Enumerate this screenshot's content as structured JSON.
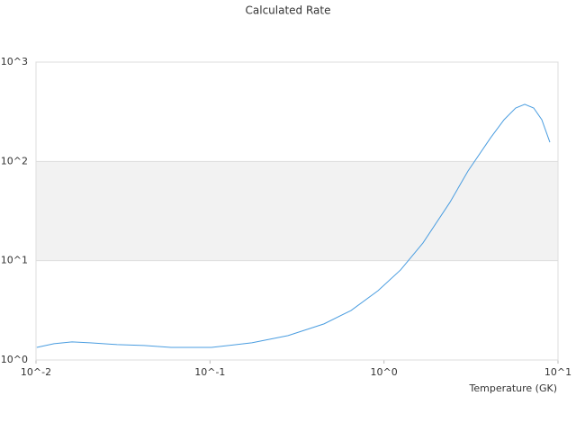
{
  "chart_data": {
    "type": "line",
    "title": "Calculated Rate",
    "x_label": "Temperature (GK)",
    "x": [
      0.0101,
      0.0127,
      0.0161,
      0.0204,
      0.0292,
      0.0418,
      0.0597,
      0.102,
      0.174,
      0.281,
      0.452,
      0.646,
      0.924,
      1.245,
      1.675,
      2.39,
      3.04,
      4.1,
      4.9,
      5.71,
      6.44,
      7.25,
      8.07,
      8.98
    ],
    "series": [
      {
        "name": "Rate",
        "color": "#4a9de0",
        "values": [
          1.34,
          1.46,
          1.52,
          1.49,
          1.43,
          1.4,
          1.34,
          1.34,
          1.49,
          1.76,
          2.31,
          3.15,
          4.99,
          8.07,
          15.1,
          38.6,
          80,
          173,
          263,
          345,
          376,
          345,
          263,
          156
        ]
      }
    ],
    "xlim": [
      0.01,
      10
    ],
    "ylim": [
      1,
      1000
    ],
    "xticks": [
      {
        "value": 0.01,
        "label": "10^-2"
      },
      {
        "value": 0.1,
        "label": "10^-1"
      },
      {
        "value": 1,
        "label": "10^0"
      },
      {
        "value": 10,
        "label": "10^1"
      }
    ],
    "yticks": [
      {
        "value": 1,
        "label": "10^0"
      },
      {
        "value": 10,
        "label": "10^1"
      },
      {
        "value": 100,
        "label": "10^2"
      },
      {
        "value": 1000,
        "label": "10^3"
      }
    ],
    "x_log": true,
    "y_log": true,
    "grid": true,
    "alternate_bands": true
  }
}
